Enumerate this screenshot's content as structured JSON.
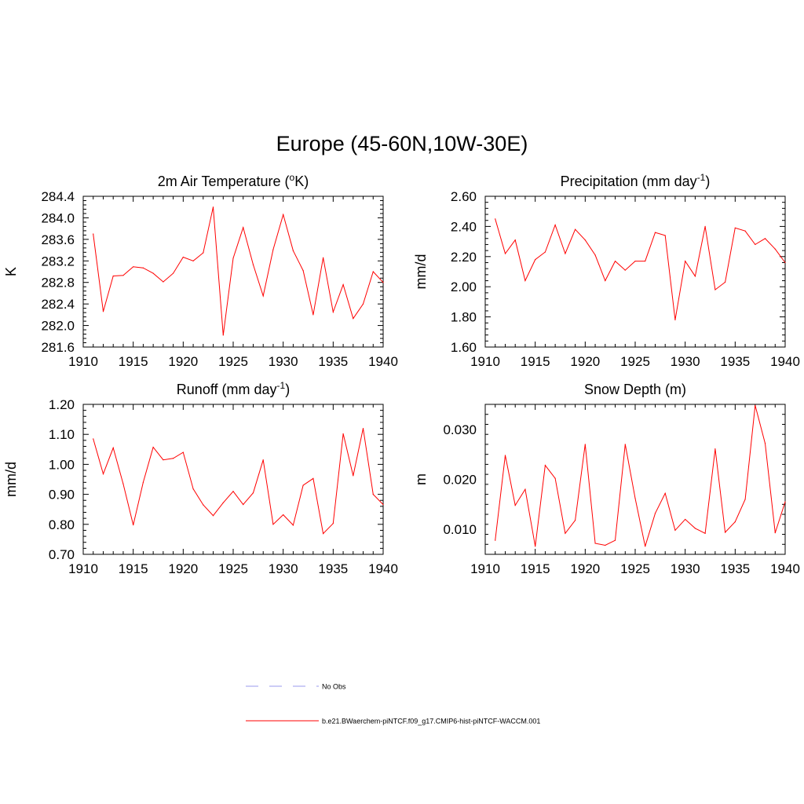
{
  "title": "Europe (45-60N,10W-30E)",
  "chart_data": [
    {
      "type": "line",
      "title": "2m Air Temperature (",
      "title_sup": "o",
      "title_after": "K)",
      "ylabel": "K",
      "xlabel": "",
      "xlim": [
        1910,
        1940
      ],
      "ylim": [
        281.6,
        284.4
      ],
      "xticks": [
        "1910",
        "1915",
        "1920",
        "1925",
        "1930",
        "1935",
        "1940"
      ],
      "yticks": [
        "281.6",
        "282.0",
        "282.4",
        "282.8",
        "283.2",
        "283.6",
        "284.0",
        "284.4"
      ],
      "series": [
        {
          "color": "#ff0000",
          "x": [
            1911,
            1912,
            1913,
            1914,
            1915,
            1916,
            1917,
            1918,
            1919,
            1920,
            1921,
            1922,
            1923,
            1924,
            1925,
            1926,
            1927,
            1928,
            1929,
            1930,
            1931,
            1932,
            1933,
            1934,
            1935,
            1936,
            1937,
            1938,
            1939,
            1940
          ],
          "y": [
            283.7,
            282.26,
            282.92,
            282.93,
            283.09,
            283.07,
            282.97,
            282.81,
            282.97,
            283.27,
            283.2,
            283.35,
            284.2,
            281.82,
            283.25,
            283.82,
            283.13,
            282.55,
            283.41,
            284.06,
            283.39,
            283.02,
            282.2,
            283.26,
            282.25,
            282.76,
            282.13,
            282.4,
            283.0,
            282.8
          ]
        }
      ]
    },
    {
      "type": "line",
      "title": "Precipitation (mm day",
      "title_sup": "-1",
      "title_after": ")",
      "ylabel": "mm/d",
      "xlabel": "",
      "xlim": [
        1910,
        1940
      ],
      "ylim": [
        1.6,
        2.6
      ],
      "xticks": [
        "1910",
        "1915",
        "1920",
        "1925",
        "1930",
        "1935",
        "1940"
      ],
      "yticks": [
        "1.60",
        "1.80",
        "2.00",
        "2.20",
        "2.40",
        "2.60"
      ],
      "series": [
        {
          "color": "#ff0000",
          "x": [
            1911,
            1912,
            1913,
            1914,
            1915,
            1916,
            1917,
            1918,
            1919,
            1920,
            1921,
            1922,
            1923,
            1924,
            1925,
            1926,
            1927,
            1928,
            1929,
            1930,
            1931,
            1932,
            1933,
            1934,
            1935,
            1936,
            1937,
            1938,
            1939,
            1940
          ],
          "y": [
            2.45,
            2.22,
            2.31,
            2.04,
            2.18,
            2.23,
            2.41,
            2.22,
            2.38,
            2.31,
            2.21,
            2.04,
            2.17,
            2.11,
            2.17,
            2.17,
            2.36,
            2.34,
            1.78,
            2.17,
            2.07,
            2.4,
            1.98,
            2.03,
            2.39,
            2.37,
            2.28,
            2.32,
            2.25,
            2.16
          ]
        }
      ]
    },
    {
      "type": "line",
      "title": "Runoff (mm day",
      "title_sup": "-1",
      "title_after": ")",
      "ylabel": "mm/d",
      "xlabel": "",
      "xlim": [
        1910,
        1940
      ],
      "ylim": [
        0.7,
        1.2
      ],
      "xticks": [
        "1910",
        "1915",
        "1920",
        "1925",
        "1930",
        "1935",
        "1940"
      ],
      "yticks": [
        "0.70",
        "0.80",
        "0.90",
        "1.00",
        "1.10",
        "1.20"
      ],
      "series": [
        {
          "color": "#ff0000",
          "x": [
            1911,
            1912,
            1913,
            1914,
            1915,
            1916,
            1917,
            1918,
            1919,
            1920,
            1921,
            1922,
            1923,
            1924,
            1925,
            1926,
            1927,
            1928,
            1929,
            1930,
            1931,
            1932,
            1933,
            1934,
            1935,
            1936,
            1937,
            1938,
            1939,
            1940
          ],
          "y": [
            1.085,
            0.968,
            1.055,
            0.935,
            0.798,
            0.94,
            1.057,
            1.015,
            1.02,
            1.04,
            0.918,
            0.865,
            0.829,
            0.872,
            0.91,
            0.866,
            0.905,
            1.015,
            0.8,
            0.832,
            0.797,
            0.93,
            0.953,
            0.769,
            0.803,
            1.102,
            0.962,
            1.12,
            0.9,
            0.866
          ]
        }
      ]
    },
    {
      "type": "line",
      "title": "Snow Depth (m)",
      "title_sup": "",
      "title_after": "",
      "ylabel": "m",
      "xlabel": "",
      "xlim": [
        1910,
        1940
      ],
      "ylim": [
        0.005,
        0.035
      ],
      "xticks": [
        "1910",
        "1915",
        "1920",
        "1925",
        "1930",
        "1935",
        "1940"
      ],
      "yticks": [
        "0.010",
        "0.020",
        "0.030"
      ],
      "yticks_values": [
        0.01,
        0.02,
        0.03
      ],
      "series": [
        {
          "color": "#ff0000",
          "x": [
            1911,
            1912,
            1913,
            1914,
            1915,
            1916,
            1917,
            1918,
            1919,
            1920,
            1921,
            1922,
            1923,
            1924,
            1925,
            1926,
            1927,
            1928,
            1929,
            1930,
            1931,
            1932,
            1933,
            1934,
            1935,
            1936,
            1937,
            1938,
            1939,
            1940
          ],
          "y": [
            0.0078,
            0.0248,
            0.0148,
            0.018,
            0.0066,
            0.0228,
            0.0202,
            0.0092,
            0.0118,
            0.027,
            0.0072,
            0.0068,
            0.0078,
            0.027,
            0.0162,
            0.0066,
            0.0132,
            0.0172,
            0.0098,
            0.012,
            0.0102,
            0.0092,
            0.0261,
            0.0094,
            0.0115,
            0.016,
            0.0348,
            0.0272,
            0.0093,
            0.0155
          ]
        }
      ]
    }
  ],
  "legend": {
    "items": [
      {
        "label": "No Obs",
        "style": "dashed",
        "color": "#9999ee"
      },
      {
        "label": "b.e21.BWaerchem-piNTCF.f09_g17.CMIP6-hist-piNTCF-WACCM.001",
        "style": "solid",
        "color": "#ff0000"
      }
    ]
  }
}
